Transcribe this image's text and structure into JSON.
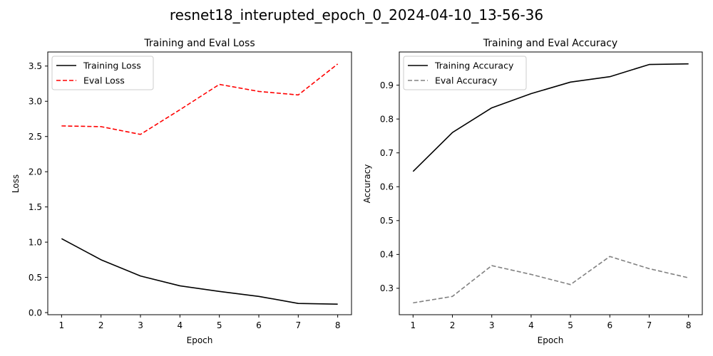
{
  "figure": {
    "title": "resnet18_interupted_epoch_0_2024-04-10_13-56-36"
  },
  "chart_data": [
    {
      "type": "line",
      "title": "Training and Eval Loss",
      "xlabel": "Epoch",
      "ylabel": "Loss",
      "x": [
        1,
        2,
        3,
        4,
        5,
        6,
        7,
        8
      ],
      "xlim": [
        0.65,
        8.35
      ],
      "ylim": [
        -0.03,
        3.7
      ],
      "xticks": [
        "1",
        "2",
        "3",
        "4",
        "5",
        "6",
        "7",
        "8"
      ],
      "yticks": [
        "0.0",
        "0.5",
        "1.0",
        "1.5",
        "2.0",
        "2.5",
        "3.0",
        "3.5"
      ],
      "grid": false,
      "legend": "upper left",
      "series": [
        {
          "name": "Training Loss",
          "values": [
            1.05,
            0.75,
            0.52,
            0.38,
            0.3,
            0.23,
            0.13,
            0.12
          ],
          "color": "#000000",
          "dash": "solid"
        },
        {
          "name": "Eval Loss",
          "values": [
            2.65,
            2.64,
            2.53,
            2.88,
            3.24,
            3.14,
            3.09,
            3.53
          ],
          "color": "#ff0000",
          "dash": "dashed"
        }
      ]
    },
    {
      "type": "line",
      "title": "Training and Eval Accuracy",
      "xlabel": "Epoch",
      "ylabel": "Accuracy",
      "x": [
        1,
        2,
        3,
        4,
        5,
        6,
        7,
        8
      ],
      "xlim": [
        0.65,
        8.35
      ],
      "ylim": [
        0.222,
        0.998
      ],
      "xticks": [
        "1",
        "2",
        "3",
        "4",
        "5",
        "6",
        "7",
        "8"
      ],
      "yticks": [
        "0.3",
        "0.4",
        "0.5",
        "0.6",
        "0.7",
        "0.8",
        "0.9"
      ],
      "grid": false,
      "legend": "upper left",
      "series": [
        {
          "name": "Training Accuracy",
          "values": [
            0.645,
            0.76,
            0.833,
            0.875,
            0.909,
            0.925,
            0.961,
            0.963
          ],
          "color": "#000000",
          "dash": "solid"
        },
        {
          "name": "Eval Accuracy",
          "values": [
            0.257,
            0.276,
            0.367,
            0.341,
            0.311,
            0.394,
            0.358,
            0.331
          ],
          "color": "#808080",
          "dash": "dashed"
        }
      ]
    }
  ]
}
